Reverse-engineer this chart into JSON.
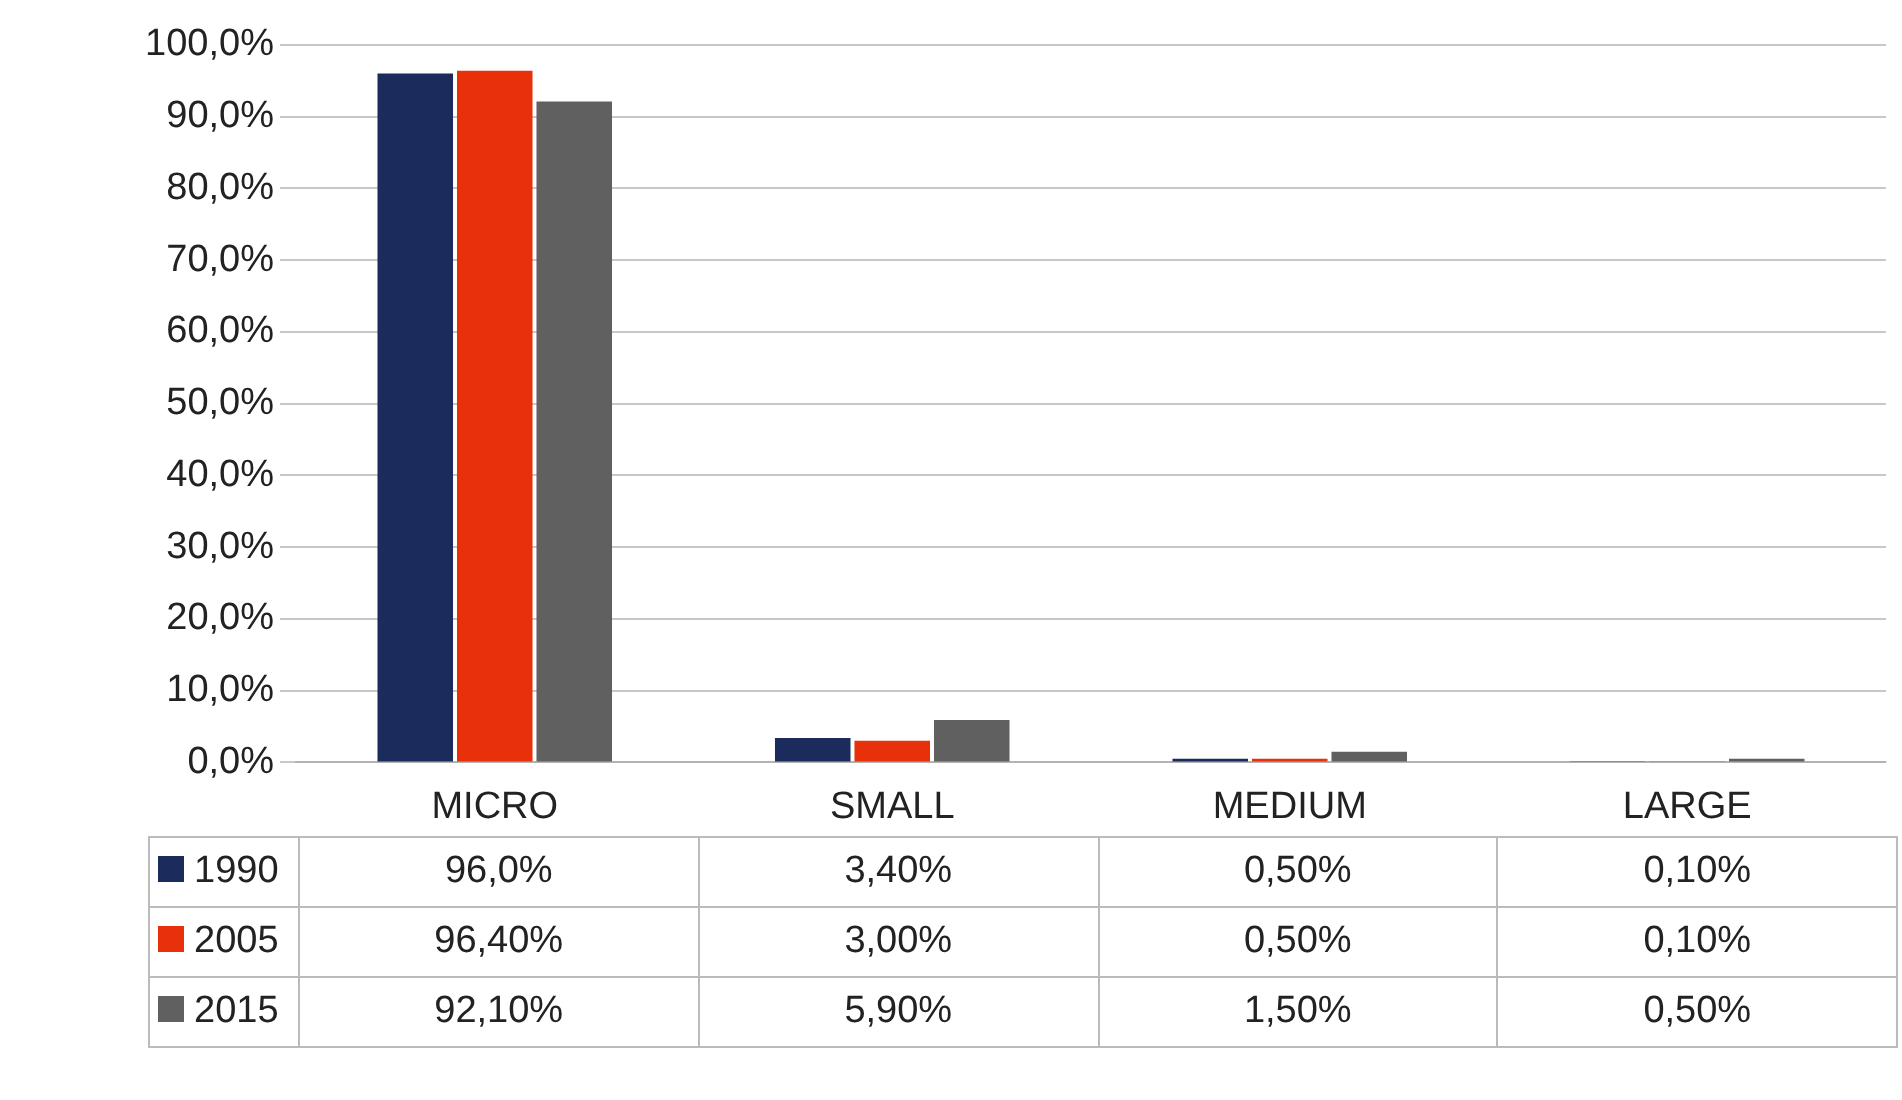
{
  "chart_data": {
    "type": "bar",
    "categories": [
      "MICRO",
      "SMALL",
      "MEDIUM",
      "LARGE"
    ],
    "series": [
      {
        "name": "1990",
        "color": "#1a2b5c",
        "values": [
          96.0,
          3.4,
          0.5,
          0.1
        ],
        "value_labels": [
          "96,0%",
          "3,40%",
          "0,50%",
          "0,10%"
        ]
      },
      {
        "name": "2005",
        "color": "#e8300a",
        "values": [
          96.4,
          3.0,
          0.5,
          0.1
        ],
        "value_labels": [
          "96,40%",
          "3,00%",
          "0,50%",
          "0,10%"
        ]
      },
      {
        "name": "2015",
        "color": "#606060",
        "values": [
          92.1,
          5.9,
          1.5,
          0.5
        ],
        "value_labels": [
          "92,10%",
          "5,90%",
          "1,50%",
          "0,50%"
        ]
      }
    ],
    "ylim": [
      0,
      100
    ],
    "yticks": [
      {
        "value": 0,
        "label": "0,0%"
      },
      {
        "value": 10,
        "label": "10,0%"
      },
      {
        "value": 20,
        "label": "20,0%"
      },
      {
        "value": 30,
        "label": "30,0%"
      },
      {
        "value": 40,
        "label": "40,0%"
      },
      {
        "value": 50,
        "label": "50,0%"
      },
      {
        "value": 60,
        "label": "60,0%"
      },
      {
        "value": 70,
        "label": "70,0%"
      },
      {
        "value": 80,
        "label": "80,0%"
      },
      {
        "value": 90,
        "label": "90,0%"
      },
      {
        "value": 100,
        "label": "100,0%"
      }
    ],
    "grid": "y",
    "legend": "bottom"
  }
}
